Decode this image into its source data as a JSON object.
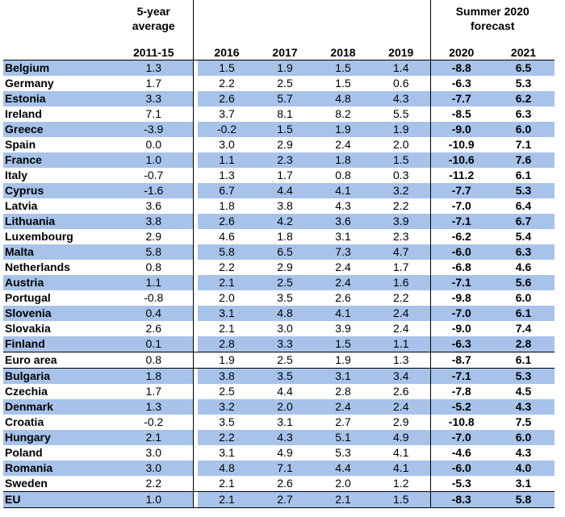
{
  "header": {
    "avg_line1": "5-year",
    "avg_line2": "average",
    "avg_period": "2011-15",
    "forecast_line1": "Summer 2020",
    "forecast_line2": "forecast",
    "years": [
      "2016",
      "2017",
      "2018",
      "2019"
    ],
    "forecast_years": [
      "2020",
      "2021"
    ]
  },
  "rows": [
    {
      "country": "Belgium",
      "avg": "1.3",
      "y2016": "1.5",
      "y2017": "1.9",
      "y2018": "1.5",
      "y2019": "1.4",
      "f2020": "-8.8",
      "f2021": "6.5"
    },
    {
      "country": "Germany",
      "avg": "1.7",
      "y2016": "2.2",
      "y2017": "2.5",
      "y2018": "1.5",
      "y2019": "0.6",
      "f2020": "-6.3",
      "f2021": "5.3"
    },
    {
      "country": "Estonia",
      "avg": "3.3",
      "y2016": "2.6",
      "y2017": "5.7",
      "y2018": "4.8",
      "y2019": "4.3",
      "f2020": "-7.7",
      "f2021": "6.2"
    },
    {
      "country": "Ireland",
      "avg": "7.1",
      "y2016": "3.7",
      "y2017": "8.1",
      "y2018": "8.2",
      "y2019": "5.5",
      "f2020": "-8.5",
      "f2021": "6.3"
    },
    {
      "country": "Greece",
      "avg": "-3.9",
      "y2016": "-0.2",
      "y2017": "1.5",
      "y2018": "1.9",
      "y2019": "1.9",
      "f2020": "-9.0",
      "f2021": "6.0"
    },
    {
      "country": "Spain",
      "avg": "0.0",
      "y2016": "3.0",
      "y2017": "2.9",
      "y2018": "2.4",
      "y2019": "2.0",
      "f2020": "-10.9",
      "f2021": "7.1"
    },
    {
      "country": "France",
      "avg": "1.0",
      "y2016": "1.1",
      "y2017": "2.3",
      "y2018": "1.8",
      "y2019": "1.5",
      "f2020": "-10.6",
      "f2021": "7.6"
    },
    {
      "country": "Italy",
      "avg": "-0.7",
      "y2016": "1.3",
      "y2017": "1.7",
      "y2018": "0.8",
      "y2019": "0.3",
      "f2020": "-11.2",
      "f2021": "6.1"
    },
    {
      "country": "Cyprus",
      "avg": "-1.6",
      "y2016": "6.7",
      "y2017": "4.4",
      "y2018": "4.1",
      "y2019": "3.2",
      "f2020": "-7.7",
      "f2021": "5.3"
    },
    {
      "country": "Latvia",
      "avg": "3.6",
      "y2016": "1.8",
      "y2017": "3.8",
      "y2018": "4.3",
      "y2019": "2.2",
      "f2020": "-7.0",
      "f2021": "6.4"
    },
    {
      "country": "Lithuania",
      "avg": "3.8",
      "y2016": "2.6",
      "y2017": "4.2",
      "y2018": "3.6",
      "y2019": "3.9",
      "f2020": "-7.1",
      "f2021": "6.7"
    },
    {
      "country": "Luxembourg",
      "avg": "2.9",
      "y2016": "4.6",
      "y2017": "1.8",
      "y2018": "3.1",
      "y2019": "2.3",
      "f2020": "-6.2",
      "f2021": "5.4"
    },
    {
      "country": "Malta",
      "avg": "5.8",
      "y2016": "5.8",
      "y2017": "6.5",
      "y2018": "7.3",
      "y2019": "4.7",
      "f2020": "-6.0",
      "f2021": "6.3"
    },
    {
      "country": "Netherlands",
      "avg": "0.8",
      "y2016": "2.2",
      "y2017": "2.9",
      "y2018": "2.4",
      "y2019": "1.7",
      "f2020": "-6.8",
      "f2021": "4.6"
    },
    {
      "country": "Austria",
      "avg": "1.1",
      "y2016": "2.1",
      "y2017": "2.5",
      "y2018": "2.4",
      "y2019": "1.6",
      "f2020": "-7.1",
      "f2021": "5.6"
    },
    {
      "country": "Portugal",
      "avg": "-0.8",
      "y2016": "2.0",
      "y2017": "3.5",
      "y2018": "2.6",
      "y2019": "2.2",
      "f2020": "-9.8",
      "f2021": "6.0"
    },
    {
      "country": "Slovenia",
      "avg": "0.4",
      "y2016": "3.1",
      "y2017": "4.8",
      "y2018": "4.1",
      "y2019": "2.4",
      "f2020": "-7.0",
      "f2021": "6.1"
    },
    {
      "country": "Slovakia",
      "avg": "2.6",
      "y2016": "2.1",
      "y2017": "3.0",
      "y2018": "3.9",
      "y2019": "2.4",
      "f2020": "-9.0",
      "f2021": "7.4"
    },
    {
      "country": "Finland",
      "avg": "0.1",
      "y2016": "2.8",
      "y2017": "3.3",
      "y2018": "1.5",
      "y2019": "1.1",
      "f2020": "-6.3",
      "f2021": "2.8"
    },
    {
      "country": "Euro area",
      "avg": "0.8",
      "y2016": "1.9",
      "y2017": "2.5",
      "y2018": "1.9",
      "y2019": "1.3",
      "f2020": "-8.7",
      "f2021": "6.1"
    },
    {
      "country": "Bulgaria",
      "avg": "1.8",
      "y2016": "3.8",
      "y2017": "3.5",
      "y2018": "3.1",
      "y2019": "3.4",
      "f2020": "-7.1",
      "f2021": "5.3"
    },
    {
      "country": "Czechia",
      "avg": "1.7",
      "y2016": "2.5",
      "y2017": "4.4",
      "y2018": "2.8",
      "y2019": "2.6",
      "f2020": "-7.8",
      "f2021": "4.5"
    },
    {
      "country": "Denmark",
      "avg": "1.3",
      "y2016": "3.2",
      "y2017": "2.0",
      "y2018": "2.4",
      "y2019": "2.4",
      "f2020": "-5.2",
      "f2021": "4.3"
    },
    {
      "country": "Croatia",
      "avg": "-0.2",
      "y2016": "3.5",
      "y2017": "3.1",
      "y2018": "2.7",
      "y2019": "2.9",
      "f2020": "-10.8",
      "f2021": "7.5"
    },
    {
      "country": "Hungary",
      "avg": "2.1",
      "y2016": "2.2",
      "y2017": "4.3",
      "y2018": "5.1",
      "y2019": "4.9",
      "f2020": "-7.0",
      "f2021": "6.0"
    },
    {
      "country": "Poland",
      "avg": "3.0",
      "y2016": "3.1",
      "y2017": "4.9",
      "y2018": "5.3",
      "y2019": "4.1",
      "f2020": "-4.6",
      "f2021": "4.3"
    },
    {
      "country": "Romania",
      "avg": "3.0",
      "y2016": "4.8",
      "y2017": "7.1",
      "y2018": "4.4",
      "y2019": "4.1",
      "f2020": "-6.0",
      "f2021": "4.0"
    },
    {
      "country": "Sweden",
      "avg": "2.2",
      "y2016": "2.1",
      "y2017": "2.6",
      "y2018": "2.0",
      "y2019": "1.2",
      "f2020": "-5.3",
      "f2021": "3.1"
    },
    {
      "country": "EU",
      "avg": "1.0",
      "y2016": "2.1",
      "y2017": "2.7",
      "y2018": "2.1",
      "y2019": "1.5",
      "f2020": "-8.3",
      "f2021": "5.8"
    }
  ],
  "colors": {
    "row_shade": "#a7c3ea",
    "rule": "#000000"
  }
}
